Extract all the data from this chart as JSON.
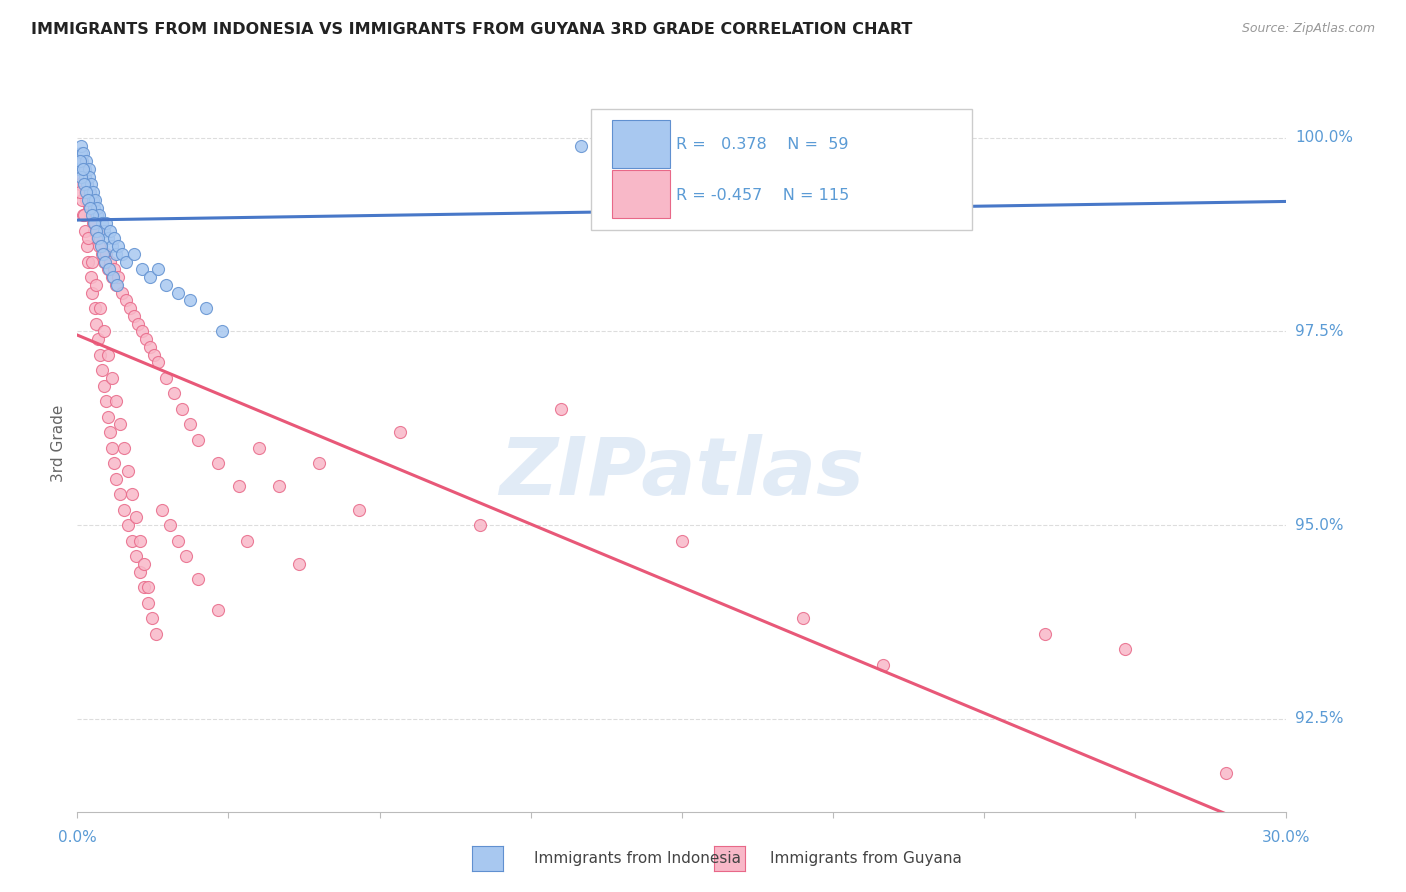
{
  "title": "IMMIGRANTS FROM INDONESIA VS IMMIGRANTS FROM GUYANA 3RD GRADE CORRELATION CHART",
  "source": "Source: ZipAtlas.com",
  "ylabel": "3rd Grade",
  "yticks": [
    92.5,
    95.0,
    97.5,
    100.0
  ],
  "ytick_labels": [
    "92.5%",
    "95.0%",
    "97.5%",
    "100.0%"
  ],
  "xmin": 0.0,
  "xmax": 30.0,
  "ymin": 91.3,
  "ymax": 100.8,
  "r_indonesia": 0.378,
  "n_indonesia": 59,
  "r_guyana": -0.457,
  "n_guyana": 115,
  "color_indonesia_fill": "#A8C8F0",
  "color_guyana_fill": "#F8B8C8",
  "color_indonesia_edge": "#6090D0",
  "color_guyana_edge": "#E86888",
  "color_indonesia_line": "#4878C8",
  "color_guyana_line": "#E85878",
  "color_axis_labels": "#5B9BD5",
  "watermark": "ZIPatlas",
  "legend_r_color": "#5B9BD5",
  "indonesia_x": [
    0.05,
    0.08,
    0.1,
    0.12,
    0.15,
    0.18,
    0.2,
    0.22,
    0.25,
    0.28,
    0.3,
    0.32,
    0.35,
    0.38,
    0.4,
    0.42,
    0.45,
    0.48,
    0.5,
    0.55,
    0.6,
    0.65,
    0.7,
    0.75,
    0.8,
    0.85,
    0.9,
    0.95,
    1.0,
    1.1,
    1.2,
    1.4,
    1.6,
    1.8,
    2.0,
    2.2,
    2.5,
    2.8,
    3.2,
    3.6,
    0.06,
    0.09,
    0.13,
    0.17,
    0.21,
    0.26,
    0.31,
    0.36,
    0.41,
    0.46,
    0.52,
    0.58,
    0.63,
    0.68,
    0.78,
    0.88,
    0.98,
    12.5,
    13.8
  ],
  "indonesia_y": [
    99.6,
    99.8,
    99.9,
    99.7,
    99.8,
    99.6,
    99.5,
    99.7,
    99.4,
    99.6,
    99.5,
    99.3,
    99.4,
    99.2,
    99.3,
    99.1,
    99.2,
    99.0,
    99.1,
    99.0,
    98.9,
    98.8,
    98.9,
    98.7,
    98.8,
    98.6,
    98.7,
    98.5,
    98.6,
    98.5,
    98.4,
    98.5,
    98.3,
    98.2,
    98.3,
    98.1,
    98.0,
    97.9,
    97.8,
    97.5,
    99.7,
    99.5,
    99.6,
    99.4,
    99.3,
    99.2,
    99.1,
    99.0,
    98.9,
    98.8,
    98.7,
    98.6,
    98.5,
    98.4,
    98.3,
    98.2,
    98.1,
    99.9,
    100.0
  ],
  "guyana_x": [
    0.05,
    0.08,
    0.1,
    0.12,
    0.15,
    0.18,
    0.2,
    0.22,
    0.25,
    0.28,
    0.3,
    0.32,
    0.35,
    0.38,
    0.4,
    0.42,
    0.45,
    0.48,
    0.5,
    0.55,
    0.6,
    0.65,
    0.7,
    0.75,
    0.8,
    0.85,
    0.9,
    0.95,
    1.0,
    1.1,
    1.2,
    1.3,
    1.4,
    1.5,
    1.6,
    1.7,
    1.8,
    1.9,
    2.0,
    2.2,
    2.4,
    2.6,
    2.8,
    3.0,
    3.5,
    4.0,
    4.5,
    5.0,
    6.0,
    7.0,
    0.07,
    0.11,
    0.14,
    0.19,
    0.23,
    0.27,
    0.33,
    0.37,
    0.43,
    0.47,
    0.52,
    0.57,
    0.62,
    0.67,
    0.72,
    0.77,
    0.82,
    0.87,
    0.92,
    0.97,
    1.05,
    1.15,
    1.25,
    1.35,
    1.45,
    1.55,
    1.65,
    1.75,
    1.85,
    1.95,
    2.1,
    2.3,
    2.5,
    2.7,
    3.0,
    3.5,
    4.2,
    5.5,
    8.0,
    10.0,
    12.0,
    15.0,
    18.0,
    20.0,
    24.0,
    26.0,
    28.5,
    0.06,
    0.16,
    0.26,
    0.36,
    0.46,
    0.56,
    0.66,
    0.76,
    0.86,
    0.96,
    1.06,
    1.16,
    1.26,
    1.36,
    1.46,
    1.56,
    1.66,
    1.76
  ],
  "guyana_y": [
    99.5,
    99.6,
    99.7,
    99.5,
    99.4,
    99.3,
    99.5,
    99.2,
    99.4,
    99.1,
    99.3,
    99.0,
    99.2,
    98.9,
    99.0,
    98.8,
    98.9,
    98.7,
    98.8,
    98.6,
    98.5,
    98.4,
    98.5,
    98.3,
    98.4,
    98.2,
    98.3,
    98.1,
    98.2,
    98.0,
    97.9,
    97.8,
    97.7,
    97.6,
    97.5,
    97.4,
    97.3,
    97.2,
    97.1,
    96.9,
    96.7,
    96.5,
    96.3,
    96.1,
    95.8,
    95.5,
    96.0,
    95.5,
    95.8,
    95.2,
    99.4,
    99.2,
    99.0,
    98.8,
    98.6,
    98.4,
    98.2,
    98.0,
    97.8,
    97.6,
    97.4,
    97.2,
    97.0,
    96.8,
    96.6,
    96.4,
    96.2,
    96.0,
    95.8,
    95.6,
    95.4,
    95.2,
    95.0,
    94.8,
    94.6,
    94.4,
    94.2,
    94.0,
    93.8,
    93.6,
    95.2,
    95.0,
    94.8,
    94.6,
    94.3,
    93.9,
    94.8,
    94.5,
    96.2,
    95.0,
    96.5,
    94.8,
    93.8,
    93.2,
    93.6,
    93.4,
    91.8,
    99.3,
    99.0,
    98.7,
    98.4,
    98.1,
    97.8,
    97.5,
    97.2,
    96.9,
    96.6,
    96.3,
    96.0,
    95.7,
    95.4,
    95.1,
    94.8,
    94.5,
    94.2
  ]
}
